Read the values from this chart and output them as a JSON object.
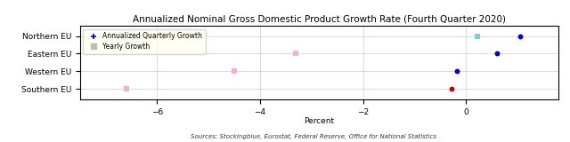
{
  "title": "Annualized Nominal Gross Domestic Product Growth Rate (Fourth Quarter 2020)",
  "xlabel": "Percent",
  "source_text": "Sources: Stockingblue, Eurostat, Federal Reserve, Office for National Statistics",
  "regions": [
    "Northern EU",
    "Eastern EU",
    "Western EU",
    "Southern EU"
  ],
  "annualized_quarterly": [
    1.05,
    0.6,
    -0.18,
    -0.28
  ],
  "yearly": [
    0.22,
    -3.3,
    -4.5,
    -6.6
  ],
  "dot_color_quarterly": "#0000cc",
  "dot_color_yearly_north": "#7ecece",
  "dot_color_yearly_pink": "#ffb0b0",
  "dot_color_southern_red": "#cc0000",
  "xlim": [
    -7.5,
    1.8
  ],
  "xticks": [
    -6,
    -4,
    -2,
    0
  ],
  "background_color": "#ffffff",
  "legend_bg": "#fffff0",
  "title_fontsize": 7.5,
  "axis_fontsize": 6.5,
  "source_fontsize": 5.0
}
